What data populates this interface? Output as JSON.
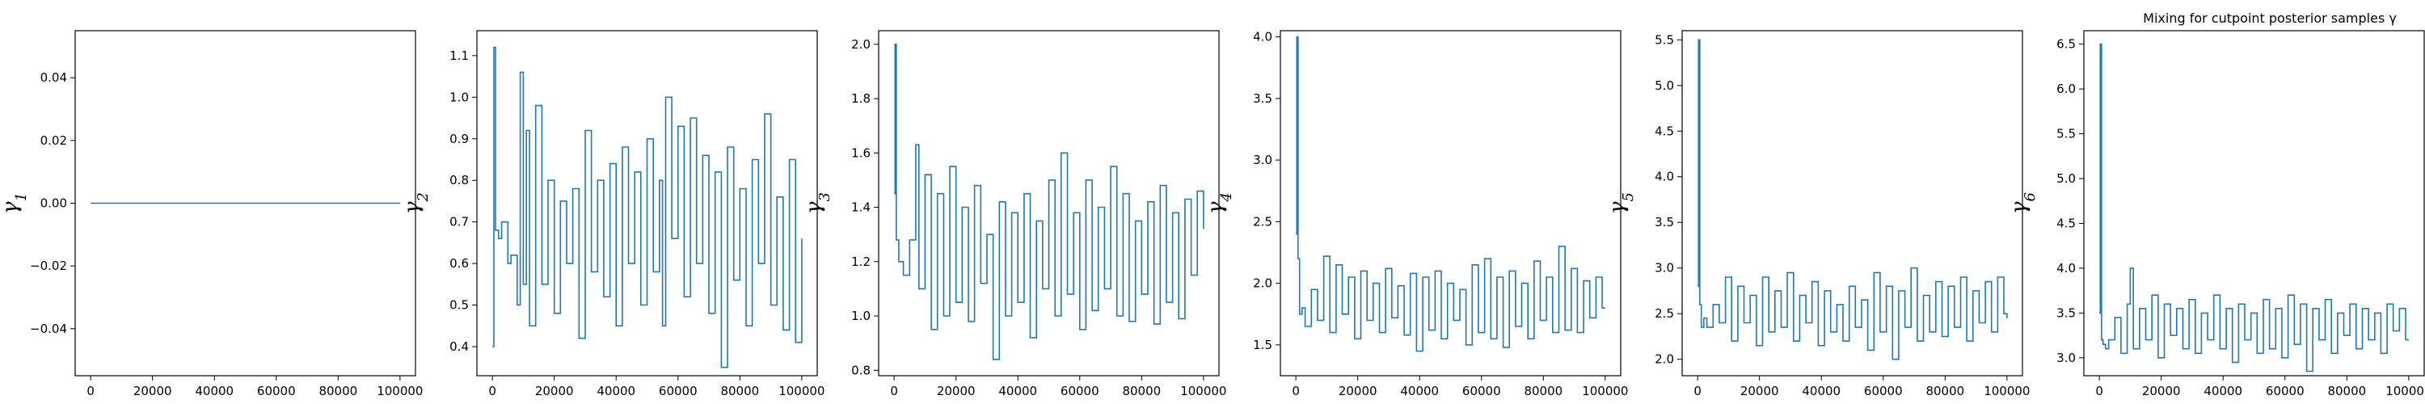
{
  "figure": {
    "title": "Mixing for cutpoint posterior samples γ"
  },
  "style": {
    "line_color": "#1f77b4",
    "axis_color": "#000000",
    "background": "#ffffff"
  },
  "chart_data": [
    {
      "type": "line",
      "ylabel": "γ1",
      "xlim": [
        -5000,
        105000
      ],
      "ylim": [
        -0.055,
        0.055
      ],
      "xticks": [
        0,
        20000,
        40000,
        60000,
        80000,
        100000
      ],
      "xtick_labels": [
        "0",
        "20000",
        "40000",
        "60000",
        "80000",
        "100000"
      ],
      "yticks": [
        -0.04,
        -0.02,
        0.0,
        0.02,
        0.04
      ],
      "ytick_labels": [
        "−0.04",
        "−0.02",
        "0.00",
        "0.02",
        "0.04"
      ],
      "series": [
        {
          "x": [
            0,
            100000
          ],
          "y": [
            0,
            0
          ]
        }
      ]
    },
    {
      "type": "line",
      "ylabel": "γ2",
      "xlim": [
        -5000,
        105000
      ],
      "ylim": [
        0.33,
        1.16
      ],
      "xticks": [
        0,
        20000,
        40000,
        60000,
        80000,
        100000
      ],
      "xtick_labels": [
        "0",
        "20000",
        "40000",
        "60000",
        "80000",
        "100000"
      ],
      "yticks": [
        0.4,
        0.5,
        0.6,
        0.7,
        0.8,
        0.9,
        1.0,
        1.1
      ],
      "ytick_labels": [
        "0.4",
        "0.5",
        "0.6",
        "0.7",
        "0.8",
        "0.9",
        "1.0",
        "1.1"
      ],
      "series": [
        {
          "x": [
            0,
            500,
            1000,
            2000,
            3000,
            5000,
            6000,
            8000,
            9000,
            10000,
            11000,
            12000,
            14000,
            16000,
            18000,
            20000,
            22000,
            24000,
            26000,
            28000,
            30000,
            32000,
            34000,
            36000,
            38000,
            40000,
            42000,
            44000,
            46000,
            48000,
            50000,
            52000,
            54000,
            55000,
            56000,
            58000,
            60000,
            62000,
            64000,
            66000,
            68000,
            70000,
            72000,
            74000,
            76000,
            78000,
            80000,
            82000,
            84000,
            86000,
            88000,
            90000,
            92000,
            94000,
            96000,
            98000,
            100000
          ],
          "y": [
            0.4,
            1.12,
            0.68,
            0.66,
            0.7,
            0.6,
            0.62,
            0.5,
            1.06,
            0.55,
            0.92,
            0.45,
            0.98,
            0.55,
            0.8,
            0.48,
            0.75,
            0.6,
            0.78,
            0.42,
            0.92,
            0.58,
            0.8,
            0.52,
            0.84,
            0.45,
            0.88,
            0.6,
            0.82,
            0.5,
            0.9,
            0.58,
            0.8,
            0.45,
            1.0,
            0.66,
            0.93,
            0.52,
            0.95,
            0.6,
            0.86,
            0.48,
            0.82,
            0.35,
            0.88,
            0.56,
            0.78,
            0.45,
            0.85,
            0.6,
            0.96,
            0.5,
            0.76,
            0.44,
            0.85,
            0.41,
            0.66
          ]
        }
      ]
    },
    {
      "type": "line",
      "ylabel": "γ3",
      "xlim": [
        -5000,
        105000
      ],
      "ylim": [
        0.78,
        2.05
      ],
      "xticks": [
        0,
        20000,
        40000,
        60000,
        80000,
        100000
      ],
      "xtick_labels": [
        "0",
        "20000",
        "40000",
        "60000",
        "80000",
        "100000"
      ],
      "yticks": [
        0.8,
        1.0,
        1.2,
        1.4,
        1.6,
        1.8,
        2.0
      ],
      "ytick_labels": [
        "0.8",
        "1.0",
        "1.2",
        "1.4",
        "1.6",
        "1.8",
        "2.0"
      ],
      "series": [
        {
          "x": [
            0,
            300,
            700,
            1500,
            3000,
            5000,
            7000,
            8000,
            10000,
            12000,
            14000,
            16000,
            18000,
            20000,
            22000,
            24000,
            26000,
            28000,
            30000,
            32000,
            34000,
            36000,
            38000,
            40000,
            42000,
            44000,
            46000,
            48000,
            50000,
            52000,
            54000,
            56000,
            58000,
            60000,
            62000,
            64000,
            66000,
            68000,
            70000,
            72000,
            74000,
            76000,
            78000,
            80000,
            82000,
            84000,
            86000,
            88000,
            90000,
            92000,
            94000,
            96000,
            98000,
            100000
          ],
          "y": [
            1.45,
            2.0,
            1.28,
            1.2,
            1.15,
            1.28,
            1.63,
            1.1,
            1.52,
            0.95,
            1.45,
            1.0,
            1.55,
            1.05,
            1.4,
            0.98,
            1.48,
            1.12,
            1.3,
            0.84,
            1.42,
            1.0,
            1.38,
            1.05,
            1.45,
            0.92,
            1.35,
            1.1,
            1.5,
            1.0,
            1.6,
            1.08,
            1.38,
            0.95,
            1.5,
            1.02,
            1.4,
            1.1,
            1.55,
            1.0,
            1.45,
            0.98,
            1.35,
            1.08,
            1.42,
            0.97,
            1.48,
            1.05,
            1.38,
            0.99,
            1.43,
            1.15,
            1.46,
            1.32
          ]
        }
      ]
    },
    {
      "type": "line",
      "ylabel": "γ4",
      "xlim": [
        -5000,
        105000
      ],
      "ylim": [
        1.25,
        4.05
      ],
      "xticks": [
        0,
        20000,
        40000,
        60000,
        80000,
        100000
      ],
      "xtick_labels": [
        "0",
        "20000",
        "40000",
        "60000",
        "80000",
        "100000"
      ],
      "yticks": [
        1.5,
        2.0,
        2.5,
        3.0,
        3.5,
        4.0
      ],
      "ytick_labels": [
        "1.5",
        "2.0",
        "2.5",
        "3.0",
        "3.5",
        "4.0"
      ],
      "series": [
        {
          "x": [
            0,
            300,
            700,
            1200,
            2000,
            3000,
            5000,
            7000,
            9000,
            11000,
            13000,
            15000,
            17000,
            19000,
            21000,
            23000,
            25000,
            27000,
            29000,
            31000,
            33000,
            35000,
            37000,
            39000,
            41000,
            43000,
            45000,
            47000,
            49000,
            51000,
            53000,
            55000,
            57000,
            59000,
            61000,
            63000,
            65000,
            67000,
            69000,
            71000,
            73000,
            75000,
            77000,
            79000,
            81000,
            83000,
            85000,
            87000,
            89000,
            91000,
            93000,
            95000,
            97000,
            99000,
            100000
          ],
          "y": [
            2.4,
            4.0,
            2.2,
            1.75,
            1.8,
            1.65,
            1.95,
            1.7,
            2.22,
            1.6,
            2.15,
            1.75,
            2.05,
            1.55,
            2.1,
            1.7,
            2.0,
            1.6,
            2.12,
            1.72,
            1.98,
            1.58,
            2.08,
            1.45,
            2.05,
            1.62,
            2.1,
            1.55,
            2.0,
            1.7,
            1.95,
            1.5,
            2.15,
            1.6,
            2.2,
            1.55,
            2.05,
            1.48,
            2.1,
            1.65,
            2.0,
            1.55,
            2.18,
            1.7,
            2.05,
            1.6,
            2.3,
            1.62,
            2.12,
            1.6,
            2.02,
            1.72,
            2.05,
            1.8,
            1.8
          ]
        }
      ]
    },
    {
      "type": "line",
      "ylabel": "γ5",
      "xlim": [
        -5000,
        105000
      ],
      "ylim": [
        1.82,
        5.6
      ],
      "xticks": [
        0,
        20000,
        40000,
        60000,
        80000,
        100000
      ],
      "xtick_labels": [
        "0",
        "20000",
        "40000",
        "60000",
        "80000",
        "100000"
      ],
      "yticks": [
        2.0,
        2.5,
        3.0,
        3.5,
        4.0,
        4.5,
        5.0,
        5.5
      ],
      "ytick_labels": [
        "2.0",
        "2.5",
        "3.0",
        "3.5",
        "4.0",
        "4.5",
        "5.0",
        "5.5"
      ],
      "series": [
        {
          "x": [
            0,
            300,
            700,
            1200,
            2000,
            3000,
            5000,
            7000,
            9000,
            11000,
            13000,
            15000,
            17000,
            19000,
            21000,
            23000,
            25000,
            27000,
            29000,
            31000,
            33000,
            35000,
            37000,
            39000,
            41000,
            43000,
            45000,
            47000,
            49000,
            51000,
            53000,
            55000,
            57000,
            59000,
            61000,
            63000,
            65000,
            67000,
            69000,
            71000,
            73000,
            75000,
            77000,
            79000,
            81000,
            83000,
            85000,
            87000,
            89000,
            91000,
            93000,
            95000,
            97000,
            99000,
            100000
          ],
          "y": [
            2.8,
            5.5,
            2.6,
            2.35,
            2.45,
            2.35,
            2.6,
            2.4,
            2.9,
            2.2,
            2.8,
            2.4,
            2.7,
            2.15,
            2.9,
            2.3,
            2.75,
            2.35,
            2.95,
            2.2,
            2.7,
            2.4,
            2.85,
            2.15,
            2.75,
            2.3,
            2.6,
            2.2,
            2.8,
            2.35,
            2.65,
            2.1,
            2.95,
            2.3,
            2.8,
            2.0,
            2.75,
            2.35,
            3.0,
            2.2,
            2.7,
            2.3,
            2.85,
            2.25,
            2.8,
            2.35,
            2.9,
            2.2,
            2.75,
            2.4,
            2.85,
            2.3,
            2.9,
            2.5,
            2.45
          ]
        }
      ]
    },
    {
      "type": "line",
      "ylabel": "γ6",
      "xlim": [
        -5000,
        105000
      ],
      "ylim": [
        2.8,
        6.65
      ],
      "title": "Mixing for cutpoint posterior samples γ",
      "xticks": [
        0,
        20000,
        40000,
        60000,
        80000,
        100000
      ],
      "xtick_labels": [
        "0",
        "20000",
        "40000",
        "60000",
        "80000",
        "100000"
      ],
      "yticks": [
        3.0,
        3.5,
        4.0,
        4.5,
        5.0,
        5.5,
        6.0,
        6.5
      ],
      "ytick_labels": [
        "3.0",
        "3.5",
        "4.0",
        "4.5",
        "5.0",
        "5.5",
        "6.0",
        "6.5"
      ],
      "series": [
        {
          "x": [
            0,
            300,
            700,
            1200,
            2000,
            3000,
            5000,
            7000,
            9000,
            10000,
            11000,
            13000,
            15000,
            17000,
            19000,
            21000,
            23000,
            25000,
            27000,
            29000,
            31000,
            33000,
            35000,
            37000,
            39000,
            41000,
            43000,
            45000,
            47000,
            49000,
            51000,
            53000,
            55000,
            57000,
            59000,
            61000,
            63000,
            65000,
            67000,
            69000,
            71000,
            73000,
            75000,
            77000,
            79000,
            81000,
            83000,
            85000,
            87000,
            89000,
            91000,
            93000,
            95000,
            97000,
            99000,
            100000
          ],
          "y": [
            3.5,
            6.5,
            3.2,
            3.15,
            3.1,
            3.2,
            3.45,
            3.05,
            3.6,
            4.0,
            3.1,
            3.55,
            3.2,
            3.7,
            3.0,
            3.6,
            3.25,
            3.55,
            3.1,
            3.65,
            3.05,
            3.5,
            3.2,
            3.7,
            3.1,
            3.55,
            2.95,
            3.6,
            3.2,
            3.5,
            3.05,
            3.65,
            3.1,
            3.55,
            3.0,
            3.7,
            3.15,
            3.6,
            2.85,
            3.55,
            3.2,
            3.65,
            3.05,
            3.5,
            3.25,
            3.6,
            3.1,
            3.55,
            3.2,
            3.5,
            3.05,
            3.6,
            3.3,
            3.55,
            3.2,
            3.2
          ]
        }
      ]
    }
  ]
}
